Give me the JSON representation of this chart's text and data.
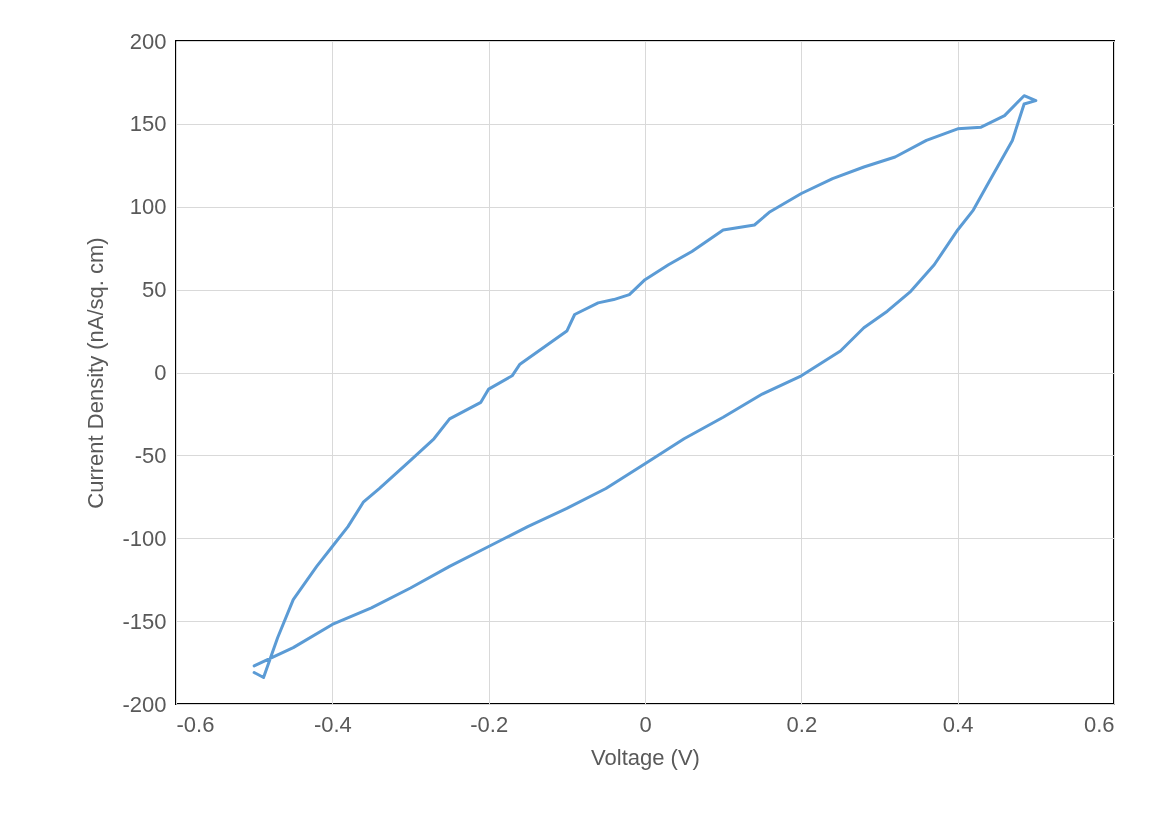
{
  "chart_data": {
    "type": "line",
    "xlabel": "Voltage (V)",
    "ylabel": "Current Density (nA/sq. cm)",
    "x": [
      -0.5,
      -0.488,
      -0.47,
      -0.45,
      -0.42,
      -0.4,
      -0.38,
      -0.36,
      -0.34,
      -0.3,
      -0.27,
      -0.25,
      -0.21,
      -0.2,
      -0.17,
      -0.16,
      -0.1,
      -0.09,
      -0.06,
      -0.04,
      -0.02,
      0,
      0.03,
      0.06,
      0.1,
      0.14,
      0.16,
      0.2,
      0.24,
      0.28,
      0.32,
      0.36,
      0.4,
      0.43,
      0.46,
      0.485,
      0.5,
      0.485,
      0.47,
      0.44,
      0.42,
      0.4,
      0.37,
      0.34,
      0.31,
      0.28,
      0.25,
      0.2,
      0.15,
      0.1,
      0.05,
      0,
      -0.05,
      -0.1,
      -0.15,
      -0.2,
      -0.25,
      -0.3,
      -0.35,
      -0.4,
      -0.45,
      -0.5
    ],
    "values": [
      -181,
      -184,
      -160,
      -137,
      -117,
      -105,
      -93,
      -78,
      -70,
      -53,
      -40,
      -28,
      -18,
      -10,
      -2,
      5,
      25,
      35,
      42,
      44,
      47,
      56,
      65,
      73,
      86,
      89,
      97,
      108,
      117,
      124,
      130,
      140,
      147,
      148,
      155,
      167,
      164,
      162,
      140,
      115,
      98,
      86,
      65,
      49,
      37,
      27,
      13,
      -2,
      -13,
      -27,
      -40,
      -55,
      -70,
      -82,
      -93,
      -105,
      -117,
      -130,
      -142,
      -152,
      -166,
      -177
    ],
    "color": "#5b9bd5",
    "line_style": "solid",
    "marker": "none",
    "grid": true,
    "xlim": [
      -0.6,
      0.6
    ],
    "xticks": [
      -0.6,
      -0.4,
      -0.2,
      0,
      0.2,
      0.4,
      0.6
    ],
    "ylim": [
      -200,
      200
    ],
    "yticks": [
      -200,
      -150,
      -100,
      -50,
      0,
      50,
      100,
      150,
      200
    ]
  }
}
